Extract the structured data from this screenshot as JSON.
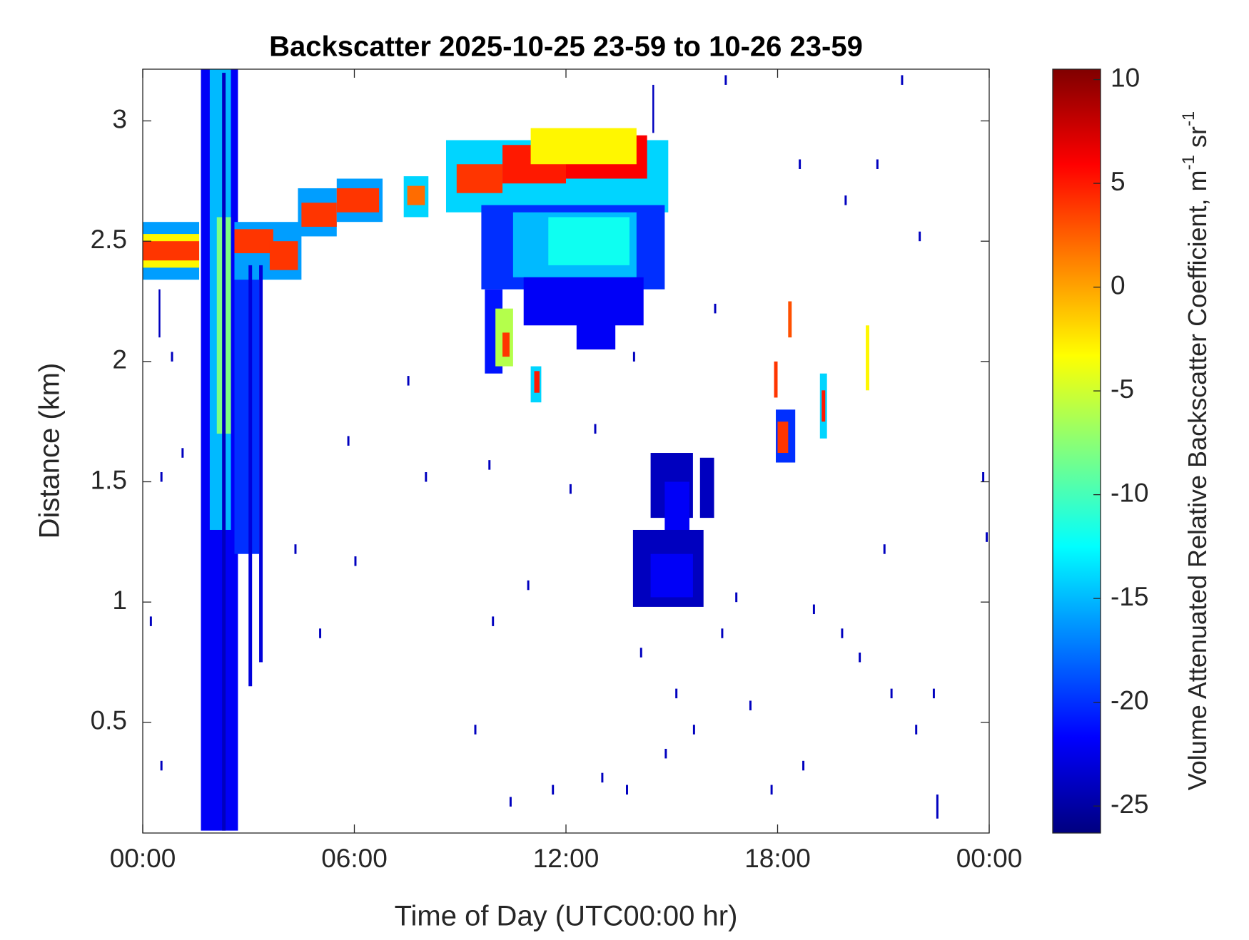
{
  "chart_data": {
    "type": "heatmap",
    "title": "Backscatter 2025-10-25 23-59 to 10-26 23-59",
    "xlabel": "Time of Day (UTC00:00 hr)",
    "ylabel": "Distance (km)",
    "colorbar_label": [
      "Volume Attenuated Relative Backscatter Coefficient, m",
      "-1",
      " sr",
      "-1"
    ],
    "colormap": "jet",
    "xlim": [
      0,
      24
    ],
    "xticks": [
      {
        "value": 0,
        "label": "00:00"
      },
      {
        "value": 6,
        "label": "06:00"
      },
      {
        "value": 12,
        "label": "12:00"
      },
      {
        "value": 18,
        "label": "18:00"
      },
      {
        "value": 24,
        "label": "00:00"
      }
    ],
    "ylim": [
      0.04,
      3.215
    ],
    "yticks": [
      0.5,
      1,
      1.5,
      2,
      2.5,
      3
    ],
    "clim": [
      -26.3,
      10.5
    ],
    "cticks": [
      -25,
      -20,
      -15,
      -10,
      -5,
      0,
      5,
      10
    ],
    "cells": [
      [
        0,
        1.6,
        2.34,
        2.58,
        -16
      ],
      [
        0,
        1.6,
        2.39,
        2.53,
        -3
      ],
      [
        0,
        1.6,
        2.42,
        2.5,
        4
      ],
      [
        1.65,
        2.7,
        0.05,
        3.215,
        -22
      ],
      [
        1.9,
        2.5,
        1.3,
        3.215,
        -15
      ],
      [
        2.1,
        2.5,
        1.7,
        2.6,
        -8
      ],
      [
        2.6,
        3.3,
        1.2,
        2.4,
        -20
      ],
      [
        2.6,
        4.5,
        2.34,
        2.58,
        -16
      ],
      [
        2.6,
        3.7,
        2.45,
        2.55,
        4
      ],
      [
        3.6,
        4.4,
        2.38,
        2.5,
        4
      ],
      [
        3.0,
        3.1,
        0.65,
        2.4,
        -23
      ],
      [
        3.3,
        3.4,
        0.75,
        2.4,
        -23
      ],
      [
        2.25,
        2.35,
        0.05,
        3.2,
        -24
      ],
      [
        4.4,
        5.5,
        2.52,
        2.72,
        -16
      ],
      [
        4.5,
        5.5,
        2.56,
        2.66,
        4
      ],
      [
        5.5,
        6.8,
        2.58,
        2.76,
        -16
      ],
      [
        5.5,
        6.7,
        2.62,
        2.72,
        4
      ],
      [
        7.4,
        8.1,
        2.6,
        2.77,
        -14
      ],
      [
        7.5,
        8.0,
        2.65,
        2.73,
        2
      ],
      [
        8.6,
        14.9,
        2.62,
        2.92,
        -14
      ],
      [
        8.9,
        10.2,
        2.7,
        2.82,
        4
      ],
      [
        10.2,
        12,
        2.74,
        2.9,
        5
      ],
      [
        12,
        14.3,
        2.76,
        2.94,
        6
      ],
      [
        11,
        14,
        2.82,
        2.97,
        -3
      ],
      [
        9.6,
        14.8,
        2.3,
        2.65,
        -20
      ],
      [
        10.5,
        14,
        2.35,
        2.62,
        -15
      ],
      [
        11.5,
        13.8,
        2.4,
        2.6,
        -12
      ],
      [
        10.8,
        14.2,
        2.15,
        2.35,
        -22
      ],
      [
        12.3,
        13.4,
        2.05,
        2.2,
        -22
      ],
      [
        9.7,
        10.2,
        1.95,
        2.3,
        -21
      ],
      [
        10.0,
        10.5,
        1.98,
        2.22,
        -6
      ],
      [
        10.2,
        10.4,
        2.02,
        2.12,
        4
      ],
      [
        11.0,
        11.3,
        1.83,
        1.98,
        -14
      ],
      [
        11.1,
        11.25,
        1.87,
        1.96,
        5
      ],
      [
        14.4,
        15.6,
        1.35,
        1.62,
        -24
      ],
      [
        14.8,
        15.5,
        1.25,
        1.5,
        -22
      ],
      [
        13.9,
        15.9,
        0.98,
        1.3,
        -24
      ],
      [
        14.4,
        15.6,
        1.02,
        1.2,
        -22
      ],
      [
        15.8,
        16.2,
        1.35,
        1.6,
        -24
      ],
      [
        17.95,
        18.5,
        1.58,
        1.8,
        -20
      ],
      [
        18.0,
        18.3,
        1.62,
        1.75,
        4
      ],
      [
        18.3,
        18.4,
        2.1,
        2.25,
        3
      ],
      [
        17.9,
        18.0,
        1.85,
        2.0,
        4
      ],
      [
        19.2,
        19.4,
        1.68,
        1.95,
        -14
      ],
      [
        19.25,
        19.35,
        1.75,
        1.88,
        5
      ],
      [
        20.5,
        20.6,
        1.88,
        2.15,
        -3
      ],
      [
        0.5,
        0.56,
        1.5,
        1.54,
        -24
      ],
      [
        0.2,
        0.26,
        0.9,
        0.94,
        -24
      ],
      [
        0.5,
        0.56,
        0.3,
        0.34,
        -24
      ],
      [
        0.8,
        0.86,
        2.0,
        2.04,
        -24
      ],
      [
        1.1,
        1.16,
        1.6,
        1.64,
        -24
      ],
      [
        4.3,
        4.36,
        1.2,
        1.24,
        -24
      ],
      [
        5.0,
        5.06,
        0.85,
        0.89,
        -24
      ],
      [
        5.8,
        5.86,
        1.65,
        1.69,
        -24
      ],
      [
        6.0,
        6.06,
        1.15,
        1.19,
        -24
      ],
      [
        7.5,
        7.56,
        1.9,
        1.94,
        -24
      ],
      [
        8.0,
        8.06,
        1.5,
        1.54,
        -24
      ],
      [
        9.4,
        9.46,
        0.45,
        0.49,
        -24
      ],
      [
        9.9,
        9.96,
        0.9,
        0.94,
        -24
      ],
      [
        9.8,
        9.86,
        1.55,
        1.59,
        -24
      ],
      [
        10.4,
        10.46,
        0.15,
        0.19,
        -24
      ],
      [
        10.9,
        10.96,
        1.05,
        1.09,
        -24
      ],
      [
        11.6,
        11.66,
        0.2,
        0.24,
        -24
      ],
      [
        12.1,
        12.16,
        1.45,
        1.49,
        -24
      ],
      [
        12.8,
        12.86,
        1.7,
        1.74,
        -24
      ],
      [
        13.0,
        13.06,
        0.25,
        0.29,
        -24
      ],
      [
        13.7,
        13.76,
        0.2,
        0.24,
        -24
      ],
      [
        14.1,
        14.16,
        0.77,
        0.81,
        -24
      ],
      [
        14.8,
        14.86,
        0.35,
        0.39,
        -24
      ],
      [
        15.1,
        15.16,
        0.6,
        0.64,
        -24
      ],
      [
        15.6,
        15.66,
        0.45,
        0.49,
        -24
      ],
      [
        16.4,
        16.46,
        0.85,
        0.89,
        -24
      ],
      [
        16.8,
        16.86,
        1.0,
        1.04,
        -24
      ],
      [
        17.2,
        17.26,
        0.55,
        0.59,
        -24
      ],
      [
        17.8,
        17.86,
        0.2,
        0.24,
        -24
      ],
      [
        18.7,
        18.76,
        0.3,
        0.34,
        -24
      ],
      [
        19.0,
        19.06,
        0.95,
        0.99,
        -24
      ],
      [
        19.8,
        19.86,
        0.85,
        0.89,
        -24
      ],
      [
        20.3,
        20.36,
        0.75,
        0.79,
        -24
      ],
      [
        21.0,
        21.06,
        1.2,
        1.24,
        -24
      ],
      [
        21.2,
        21.26,
        0.6,
        0.64,
        -24
      ],
      [
        21.9,
        21.96,
        0.45,
        0.49,
        -24
      ],
      [
        22.4,
        22.46,
        0.6,
        0.64,
        -24
      ],
      [
        23.8,
        23.86,
        1.5,
        1.54,
        -24
      ],
      [
        23.9,
        23.96,
        1.25,
        1.29,
        -24
      ],
      [
        22.0,
        22.06,
        2.5,
        2.54,
        -24
      ],
      [
        21.5,
        21.56,
        3.15,
        3.19,
        -24
      ],
      [
        20.8,
        20.86,
        2.8,
        2.84,
        -24
      ],
      [
        19.9,
        19.96,
        2.65,
        2.69,
        -24
      ],
      [
        18.6,
        18.66,
        2.8,
        2.84,
        -24
      ],
      [
        16.5,
        16.56,
        3.15,
        3.19,
        -24
      ],
      [
        13.9,
        13.96,
        2.0,
        2.04,
        -24
      ],
      [
        16.2,
        16.26,
        2.2,
        2.24,
        -24
      ],
      [
        22.5,
        22.56,
        0.1,
        0.2,
        -24
      ],
      [
        0.45,
        0.5,
        2.1,
        2.3,
        -24
      ],
      [
        14.45,
        14.5,
        2.95,
        3.15,
        -24
      ]
    ]
  }
}
